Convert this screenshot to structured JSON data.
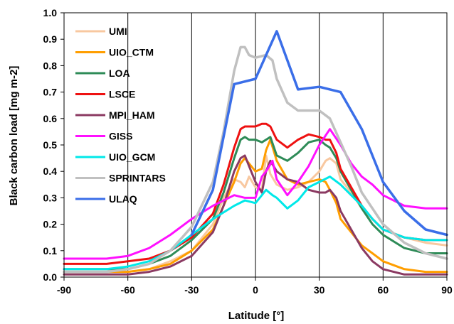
{
  "chart_data": {
    "type": "line",
    "xlabel": "Latitude [°]",
    "ylabel": "Black carbon load [mg m-2]",
    "xlim": [
      -90,
      90
    ],
    "ylim": [
      0,
      1.0
    ],
    "xticks": [
      "-90",
      "-60",
      "-30",
      "0",
      "30",
      "60",
      "90"
    ],
    "yticks": [
      "0.0",
      "0.1",
      "0.2",
      "0.3",
      "0.4",
      "0.5",
      "0.6",
      "0.7",
      "0.8",
      "0.9",
      "1.0"
    ],
    "grid": "vertical lines every 30°",
    "legend_position": "top-left",
    "series": [
      {
        "name": "UMI",
        "color": "#f8c8a0",
        "width": 3,
        "x": [
          -90,
          -70,
          -60,
          -50,
          -40,
          -30,
          -20,
          -15,
          -10,
          -7,
          -5,
          -3,
          0,
          3,
          5,
          7,
          10,
          15,
          20,
          25,
          30,
          33,
          35,
          38,
          40,
          45,
          50,
          55,
          60,
          70,
          80,
          90
        ],
        "y": [
          0.02,
          0.02,
          0.02,
          0.03,
          0.06,
          0.1,
          0.2,
          0.3,
          0.37,
          0.36,
          0.34,
          0.38,
          0.34,
          0.33,
          0.46,
          0.39,
          0.35,
          0.33,
          0.34,
          0.36,
          0.4,
          0.44,
          0.45,
          0.43,
          0.37,
          0.32,
          0.26,
          0.22,
          0.18,
          0.15,
          0.13,
          0.12
        ]
      },
      {
        "name": "UIO_CTM",
        "color": "#ff9e00",
        "width": 3,
        "x": [
          -90,
          -70,
          -60,
          -50,
          -40,
          -30,
          -20,
          -15,
          -10,
          -7,
          -5,
          -3,
          0,
          3,
          5,
          7,
          10,
          15,
          20,
          25,
          30,
          33,
          35,
          38,
          40,
          45,
          50,
          55,
          60,
          70,
          80,
          90
        ],
        "y": [
          0.02,
          0.02,
          0.02,
          0.03,
          0.05,
          0.1,
          0.18,
          0.27,
          0.36,
          0.43,
          0.45,
          0.43,
          0.4,
          0.41,
          0.48,
          0.52,
          0.44,
          0.37,
          0.35,
          0.36,
          0.37,
          0.36,
          0.33,
          0.28,
          0.22,
          0.17,
          0.12,
          0.09,
          0.06,
          0.03,
          0.02,
          0.02
        ]
      },
      {
        "name": "LOA",
        "color": "#2e8b57",
        "width": 3,
        "x": [
          -90,
          -70,
          -60,
          -50,
          -40,
          -30,
          -20,
          -15,
          -10,
          -7,
          -5,
          -3,
          0,
          3,
          5,
          7,
          10,
          15,
          20,
          25,
          30,
          33,
          35,
          38,
          40,
          45,
          50,
          55,
          60,
          70,
          80,
          90
        ],
        "y": [
          0.03,
          0.03,
          0.03,
          0.05,
          0.08,
          0.14,
          0.22,
          0.32,
          0.45,
          0.52,
          0.53,
          0.52,
          0.52,
          0.51,
          0.52,
          0.53,
          0.46,
          0.44,
          0.47,
          0.51,
          0.52,
          0.5,
          0.49,
          0.45,
          0.4,
          0.33,
          0.26,
          0.2,
          0.16,
          0.11,
          0.09,
          0.09
        ]
      },
      {
        "name": "LSCE",
        "color": "#ee1111",
        "width": 3,
        "x": [
          -90,
          -70,
          -60,
          -50,
          -40,
          -30,
          -20,
          -15,
          -10,
          -7,
          -5,
          -3,
          0,
          3,
          5,
          7,
          10,
          15,
          20,
          25,
          30,
          33,
          35,
          38,
          40,
          45,
          50,
          55,
          60,
          70,
          80,
          90
        ],
        "y": [
          0.05,
          0.05,
          0.06,
          0.07,
          0.1,
          0.15,
          0.24,
          0.35,
          0.49,
          0.56,
          0.57,
          0.57,
          0.57,
          0.58,
          0.58,
          0.57,
          0.52,
          0.49,
          0.52,
          0.54,
          0.53,
          0.52,
          0.52,
          0.47,
          0.41,
          0.34,
          0.27,
          0.22,
          0.18,
          0.15,
          0.14,
          0.14
        ]
      },
      {
        "name": "MPI_HAM",
        "color": "#8b3a62",
        "width": 3,
        "x": [
          -90,
          -70,
          -60,
          -50,
          -40,
          -30,
          -20,
          -15,
          -10,
          -7,
          -5,
          -3,
          0,
          3,
          5,
          7,
          10,
          15,
          20,
          25,
          30,
          33,
          35,
          38,
          40,
          45,
          50,
          55,
          60,
          70,
          80,
          90
        ],
        "y": [
          0.01,
          0.01,
          0.01,
          0.02,
          0.04,
          0.08,
          0.17,
          0.27,
          0.4,
          0.45,
          0.46,
          0.42,
          0.36,
          0.32,
          0.4,
          0.44,
          0.4,
          0.37,
          0.36,
          0.33,
          0.32,
          0.32,
          0.33,
          0.3,
          0.25,
          0.18,
          0.11,
          0.06,
          0.03,
          0.01,
          0.01,
          0.01
        ]
      },
      {
        "name": "GISS",
        "color": "#ff10ff",
        "width": 3,
        "x": [
          -90,
          -80,
          -70,
          -60,
          -50,
          -40,
          -30,
          -20,
          -10,
          -5,
          0,
          3,
          5,
          8,
          10,
          15,
          20,
          25,
          30,
          35,
          40,
          45,
          50,
          55,
          60,
          70,
          80,
          90
        ],
        "y": [
          0.07,
          0.07,
          0.07,
          0.08,
          0.11,
          0.16,
          0.22,
          0.27,
          0.31,
          0.3,
          0.3,
          0.38,
          0.4,
          0.44,
          0.37,
          0.31,
          0.36,
          0.42,
          0.5,
          0.56,
          0.5,
          0.43,
          0.38,
          0.35,
          0.31,
          0.27,
          0.26,
          0.26
        ]
      },
      {
        "name": "UIO_GCM",
        "color": "#00e8e8",
        "width": 3,
        "x": [
          -90,
          -70,
          -60,
          -50,
          -40,
          -30,
          -20,
          -10,
          -5,
          0,
          3,
          5,
          8,
          10,
          15,
          20,
          25,
          30,
          35,
          40,
          45,
          50,
          55,
          60,
          70,
          80,
          90
        ],
        "y": [
          0.03,
          0.03,
          0.04,
          0.06,
          0.1,
          0.16,
          0.22,
          0.27,
          0.29,
          0.28,
          0.31,
          0.33,
          0.31,
          0.3,
          0.26,
          0.29,
          0.34,
          0.36,
          0.38,
          0.35,
          0.31,
          0.27,
          0.22,
          0.18,
          0.15,
          0.14,
          0.14
        ]
      },
      {
        "name": "SPRINTARS",
        "color": "#c0c0c0",
        "width": 3.5,
        "x": [
          -90,
          -70,
          -60,
          -50,
          -40,
          -30,
          -20,
          -15,
          -10,
          -7,
          -5,
          -3,
          0,
          5,
          8,
          10,
          15,
          20,
          25,
          30,
          35,
          40,
          45,
          50,
          55,
          60,
          70,
          80,
          90
        ],
        "y": [
          0.02,
          0.02,
          0.03,
          0.05,
          0.1,
          0.19,
          0.36,
          0.55,
          0.78,
          0.87,
          0.87,
          0.84,
          0.83,
          0.84,
          0.82,
          0.75,
          0.66,
          0.63,
          0.63,
          0.63,
          0.6,
          0.51,
          0.42,
          0.32,
          0.26,
          0.2,
          0.13,
          0.09,
          0.07
        ]
      },
      {
        "name": "ULAQ",
        "color": "#3a6ee8",
        "width": 3.5,
        "x": [
          -30,
          -20,
          -10,
          0,
          10,
          20,
          30,
          40,
          50,
          60,
          70,
          80,
          90
        ],
        "y": [
          0.16,
          0.33,
          0.73,
          0.75,
          0.93,
          0.71,
          0.72,
          0.7,
          0.56,
          0.36,
          0.25,
          0.18,
          0.16
        ]
      }
    ]
  }
}
